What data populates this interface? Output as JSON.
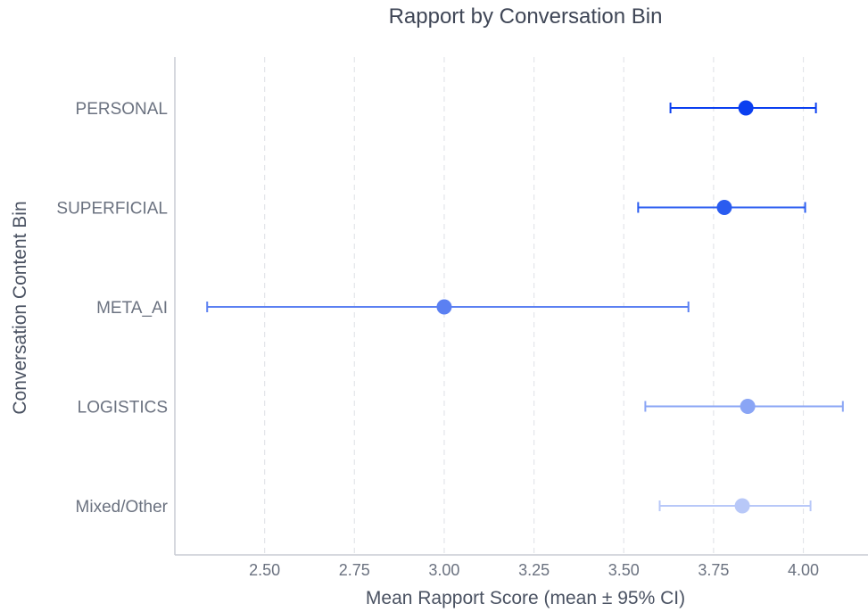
{
  "chart_data": {
    "type": "scatter",
    "title": "Rapport by Conversation Bin",
    "xlabel": "Mean Rapport Score (mean ± 95% CI)",
    "ylabel": "Conversation Content Bin",
    "xlim": [
      2.25,
      4.18
    ],
    "xticks": [
      "2.50",
      "2.75",
      "3.00",
      "3.25",
      "3.50",
      "3.75",
      "4.00"
    ],
    "grid": "vertical dashed",
    "legend": "none",
    "categories": [
      "PERSONAL",
      "SUPERFICIAL",
      "META_AI",
      "LOGISTICS",
      "Mixed/Other"
    ],
    "points": [
      {
        "category": "PERSONAL",
        "mean": 3.84,
        "ci_low": 3.63,
        "ci_high": 4.035,
        "color": "#0b3ff0"
      },
      {
        "category": "SUPERFICIAL",
        "mean": 3.78,
        "ci_low": 3.54,
        "ci_high": 4.005,
        "color": "#2a5cf0"
      },
      {
        "category": "META_AI",
        "mean": 3.0,
        "ci_low": 2.34,
        "ci_high": 3.68,
        "color": "#5b80f2"
      },
      {
        "category": "LOGISTICS",
        "mean": 3.845,
        "ci_low": 3.56,
        "ci_high": 4.11,
        "color": "#8aa5f5"
      },
      {
        "category": "Mixed/Other",
        "mean": 3.83,
        "ci_low": 3.6,
        "ci_high": 4.02,
        "color": "#b8c8f8"
      }
    ]
  }
}
